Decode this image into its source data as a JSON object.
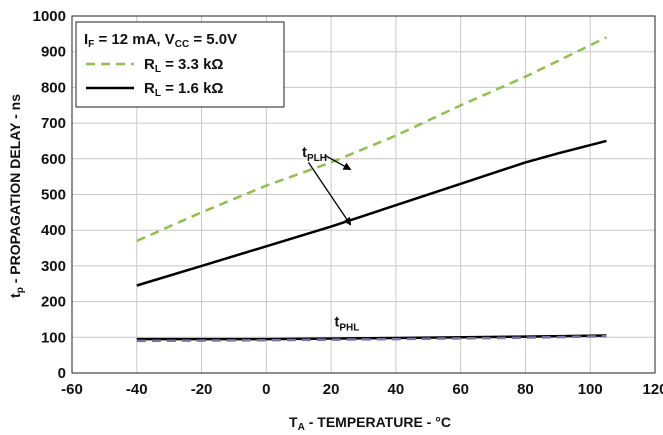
{
  "chart_data": {
    "type": "line",
    "xlabel": {
      "main": "T",
      "sub": "A",
      "rest": " - TEMPERATURE - °C"
    },
    "ylabel": {
      "main": "t",
      "sub": "p",
      "rest": " - PROPAGATION DELAY - ns"
    },
    "xlim": [
      -60,
      120
    ],
    "ylim": [
      0,
      1000
    ],
    "xticks": [
      -60,
      -40,
      -20,
      0,
      20,
      40,
      60,
      80,
      100,
      120
    ],
    "yticks": [
      0,
      100,
      200,
      300,
      400,
      500,
      600,
      700,
      800,
      900,
      1000
    ],
    "grid": true,
    "legend": {
      "position": "top-left",
      "condition": {
        "if_main": "I",
        "if_sub": "F",
        "if_rest": " = 12 mA, V",
        "vcc_sub": "CC",
        "vcc_rest": " = 5.0V"
      },
      "entries": [
        {
          "main": "R",
          "sub": "L",
          "rest": " = 3.3 kΩ",
          "color": "#8fbf4f",
          "dash": true
        },
        {
          "main": "R",
          "sub": "L",
          "rest": " = 1.6 kΩ",
          "color": "#000000",
          "dash": false
        }
      ]
    },
    "series": [
      {
        "key": "r33_tplh",
        "color": "#8fbf4f",
        "dash": true,
        "x": [
          -40,
          -20,
          0,
          20,
          40,
          60,
          80,
          105
        ],
        "y": [
          370,
          450,
          525,
          590,
          665,
          750,
          830,
          940
        ]
      },
      {
        "key": "r16_tplh",
        "color": "#000000",
        "dash": false,
        "x": [
          -40,
          -20,
          0,
          20,
          40,
          60,
          80,
          90,
          105
        ],
        "y": [
          245,
          300,
          355,
          410,
          470,
          530,
          590,
          615,
          650
        ]
      },
      {
        "key": "r16_tphl",
        "color": "#000000",
        "dash": false,
        "x": [
          -40,
          0,
          40,
          80,
          105
        ],
        "y": [
          95,
          95,
          98,
          102,
          105
        ]
      },
      {
        "key": "r33_tphl",
        "color": "#8070a8",
        "dash": true,
        "x": [
          -40,
          0,
          40,
          80,
          105
        ],
        "y": [
          90,
          92,
          95,
          99,
          103
        ]
      }
    ],
    "annotations": [
      {
        "main": "t",
        "sub": "PLH",
        "x": 11,
        "y": 605
      },
      {
        "main": "t",
        "sub": "PHL",
        "x": 21,
        "y": 130
      }
    ],
    "arrows": [
      {
        "from": [
          18,
          610
        ],
        "to": [
          26,
          570
        ]
      },
      {
        "from": [
          13,
          590
        ],
        "to": [
          26,
          415
        ]
      }
    ]
  }
}
